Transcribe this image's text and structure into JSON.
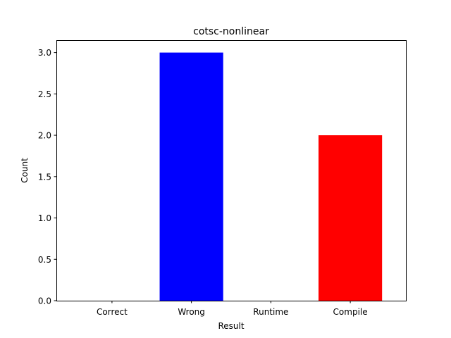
{
  "chart_data": {
    "type": "bar",
    "title": "cotsc-nonlinear",
    "xlabel": "Result",
    "ylabel": "Count",
    "categories": [
      "Correct",
      "Wrong",
      "Runtime",
      "Compile"
    ],
    "values": [
      0,
      3,
      0,
      2
    ],
    "colors": [
      "#0000ff",
      "#0000ff",
      "#00ff00",
      "#ff0000"
    ],
    "ylim": [
      0,
      3.15
    ],
    "yticks": [
      0.0,
      0.5,
      1.0,
      1.5,
      2.0,
      2.5,
      3.0
    ],
    "ytick_labels": [
      "0.0",
      "0.5",
      "1.0",
      "1.5",
      "2.0",
      "2.5",
      "3.0"
    ],
    "grid": false,
    "legend": false
  }
}
